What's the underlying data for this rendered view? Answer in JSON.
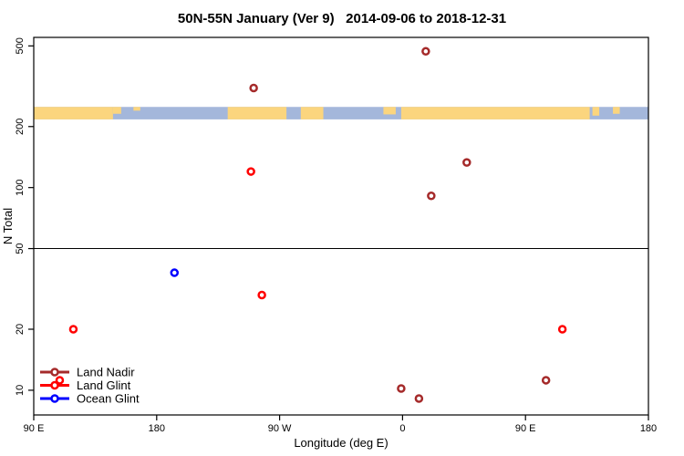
{
  "chart_data": {
    "type": "scatter",
    "title": "50N-55N January (Ver 9)   2014-09-06 to 2018-12-31",
    "xlabel": "Longitude (deg E)",
    "ylabel": "N Total",
    "x_axis": {
      "range_deg": [
        90,
        540
      ],
      "ticks_deg": [
        90,
        180,
        270,
        360,
        450,
        540
      ],
      "tick_labels": [
        "90 E",
        "180",
        "90 W",
        "0",
        "90 E",
        "180"
      ]
    },
    "y_axis": {
      "scale": "log10",
      "ticks": [
        10,
        20,
        50,
        100,
        200,
        500
      ],
      "tick_labels": [
        "10",
        "20",
        "50",
        "100",
        "200",
        "500"
      ],
      "log10_range": [
        0.878,
        2.741
      ]
    },
    "reference_line_n": 50,
    "map_band": {
      "n_range": [
        217,
        250
      ],
      "ocean_color": "#A4B7DB",
      "land_color": "#FBD57E",
      "land_segments_deg": [
        [
          90,
          148
        ],
        [
          232,
          275
        ],
        [
          285.5,
          302
        ],
        [
          359,
          497
        ]
      ],
      "land_patches_deg": [
        {
          "range": [
            148,
            154
          ],
          "depth": 0.55
        },
        {
          "range": [
            163,
            168
          ],
          "depth": 0.3
        },
        {
          "range": [
            346,
            355
          ],
          "depth": 0.6
        },
        {
          "range": [
            499,
            504
          ],
          "depth": 0.7
        },
        {
          "range": [
            514,
            519
          ],
          "depth": 0.55
        }
      ]
    },
    "series": [
      {
        "name": "Land Nadir",
        "color": "#A52A2A",
        "points": [
          {
            "lon_deg": 251,
            "n": 310
          },
          {
            "lon_deg": 377,
            "n": 470
          },
          {
            "lon_deg": 407,
            "n": 133
          },
          {
            "lon_deg": 381,
            "n": 91
          },
          {
            "lon_deg": 359,
            "n": 10.2
          },
          {
            "lon_deg": 372,
            "n": 9.1
          },
          {
            "lon_deg": 465,
            "n": 11.2
          }
        ]
      },
      {
        "name": "Land Glint",
        "color": "#FF0000",
        "points": [
          {
            "lon_deg": 249,
            "n": 120
          },
          {
            "lon_deg": 257,
            "n": 29.5
          },
          {
            "lon_deg": 119,
            "n": 20
          },
          {
            "lon_deg": 477,
            "n": 20
          },
          {
            "lon_deg": 109,
            "n": 11.2
          }
        ]
      },
      {
        "name": "Ocean Glint",
        "color": "#0000FF",
        "points": [
          {
            "lon_deg": 193,
            "n": 38
          }
        ]
      }
    ],
    "legend": {
      "position": "bottom-left",
      "items": [
        {
          "label": "Land Nadir",
          "color": "#A52A2A"
        },
        {
          "label": "Land Glint",
          "color": "#FF0000"
        },
        {
          "label": "Ocean Glint",
          "color": "#0000FF"
        }
      ]
    }
  }
}
